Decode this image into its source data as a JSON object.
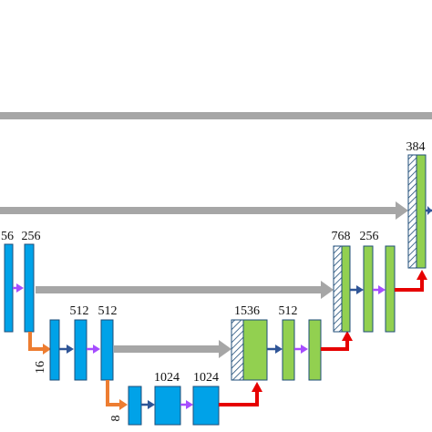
{
  "labels": {
    "top_right": "384",
    "l1_left": "56",
    "l1_right": "256",
    "l2_a": "512",
    "l2_b": "512",
    "l3_a": "1024",
    "l3_b": "1024",
    "d3_concat": "1536",
    "d3_out": "512",
    "d2_concat": "768",
    "d2_out": "256",
    "size_16": "16",
    "size_8": "8"
  },
  "colors": {
    "encoder_block": "#00a2e8",
    "decoder_block": "#92d050",
    "skip_connection": "#a6a6a6",
    "conv_arrow": "#2f5597",
    "activation_arrow": "#a64dff",
    "downsample_arrow": "#ed7d31",
    "upsample_arrow": "#e60000",
    "block_border": "#1f4e79"
  },
  "legend_semantics": {
    "hatched_block": "concatenated-skip-features",
    "icons": [
      "conv-arrow",
      "activation-arrow",
      "downsample-arrow",
      "upsample-arrow",
      "skip-arrow"
    ]
  }
}
